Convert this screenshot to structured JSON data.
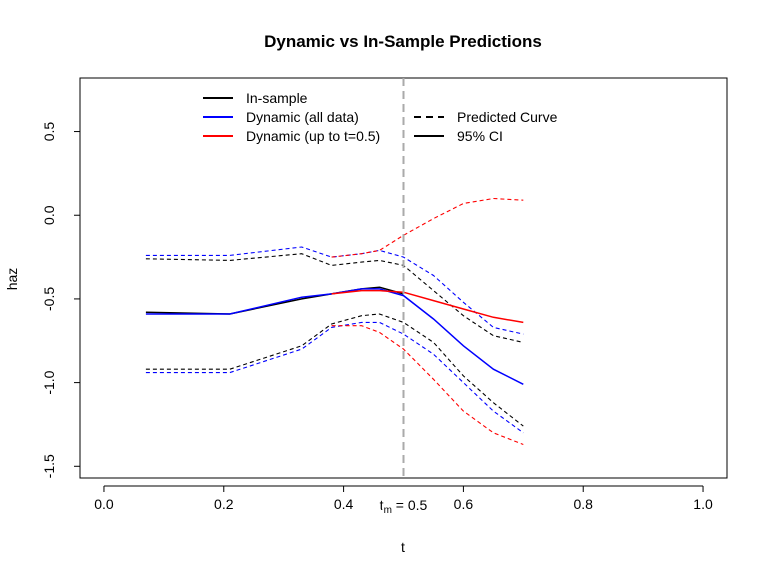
{
  "chart_data": {
    "type": "line",
    "title": "Dynamic vs In-Sample Predictions",
    "xlabel": "t",
    "ylabel": "haz",
    "xlim": [
      -0.04,
      1.04
    ],
    "ylim": [
      -1.57,
      0.82
    ],
    "xticks": [
      0.0,
      0.2,
      0.4,
      0.6,
      0.8,
      1.0
    ],
    "xtick_labels": [
      "0.0",
      "0.2",
      "0.4",
      "0.6",
      "0.8",
      "1.0"
    ],
    "yticks": [
      -1.5,
      -1.0,
      -0.5,
      0.0,
      0.5
    ],
    "ytick_labels": [
      "-1.5",
      "-1.0",
      "-0.5",
      "0.0",
      "0.5"
    ],
    "grid": false,
    "vline": {
      "x": 0.5,
      "label_main": "t",
      "label_sub": "m",
      "label_rest": " = 0.5",
      "color": "#aaaaaa"
    },
    "legend_left": {
      "placement": "top-left",
      "entries": [
        {
          "label": "In-sample",
          "color": "#000000"
        },
        {
          "label": "Dynamic (all data)",
          "color": "#0000ff"
        },
        {
          "label": "Dynamic (up to t=0.5)",
          "color": "#ff0000"
        }
      ]
    },
    "legend_right": {
      "placement": "top-center",
      "entries": [
        {
          "label": "Predicted Curve",
          "style": "dashed"
        },
        {
          "label": "95% CI",
          "style": "solid"
        }
      ]
    },
    "series": [
      {
        "name": "In-sample",
        "color": "#000000",
        "role": "estimate",
        "x": [
          0.07,
          0.21,
          0.33,
          0.38,
          0.43,
          0.46,
          0.5
        ],
        "y": [
          -0.58,
          -0.59,
          -0.5,
          -0.47,
          -0.44,
          -0.43,
          -0.47
        ]
      },
      {
        "name": "In-sample",
        "color": "#000000",
        "role": "upper",
        "x": [
          0.07,
          0.21,
          0.33,
          0.38,
          0.43,
          0.46,
          0.5,
          0.55,
          0.6,
          0.65,
          0.7
        ],
        "y": [
          -0.26,
          -0.27,
          -0.23,
          -0.3,
          -0.28,
          -0.27,
          -0.3,
          -0.45,
          -0.6,
          -0.72,
          -0.76
        ]
      },
      {
        "name": "In-sample",
        "color": "#000000",
        "role": "lower",
        "x": [
          0.07,
          0.21,
          0.33,
          0.38,
          0.43,
          0.46,
          0.5,
          0.55,
          0.6,
          0.65,
          0.7
        ],
        "y": [
          -0.92,
          -0.92,
          -0.78,
          -0.65,
          -0.6,
          -0.59,
          -0.64,
          -0.76,
          -0.96,
          -1.12,
          -1.26
        ]
      },
      {
        "name": "Dynamic (all data)",
        "color": "#0000ff",
        "role": "estimate",
        "x": [
          0.07,
          0.21,
          0.33,
          0.38,
          0.43,
          0.46,
          0.5,
          0.55,
          0.6,
          0.65,
          0.7
        ],
        "y": [
          -0.59,
          -0.59,
          -0.49,
          -0.47,
          -0.44,
          -0.44,
          -0.48,
          -0.62,
          -0.78,
          -0.92,
          -1.01
        ]
      },
      {
        "name": "Dynamic (all data)",
        "color": "#0000ff",
        "role": "upper",
        "x": [
          0.07,
          0.21,
          0.33,
          0.38,
          0.43,
          0.46,
          0.5,
          0.55,
          0.6,
          0.65,
          0.7
        ],
        "y": [
          -0.24,
          -0.24,
          -0.19,
          -0.25,
          -0.23,
          -0.21,
          -0.25,
          -0.36,
          -0.52,
          -0.67,
          -0.71
        ]
      },
      {
        "name": "Dynamic (all data)",
        "color": "#0000ff",
        "role": "lower",
        "x": [
          0.07,
          0.21,
          0.33,
          0.38,
          0.43,
          0.46,
          0.5,
          0.55,
          0.6,
          0.65,
          0.7
        ],
        "y": [
          -0.94,
          -0.94,
          -0.8,
          -0.67,
          -0.64,
          -0.64,
          -0.71,
          -0.83,
          -1.0,
          -1.17,
          -1.3
        ]
      },
      {
        "name": "Dynamic (up to t=0.5)",
        "color": "#ff0000",
        "role": "estimate",
        "x": [
          0.38,
          0.43,
          0.46,
          0.5,
          0.55,
          0.6,
          0.65,
          0.7
        ],
        "y": [
          -0.47,
          -0.45,
          -0.45,
          -0.46,
          -0.51,
          -0.56,
          -0.61,
          -0.64
        ]
      },
      {
        "name": "Dynamic (up to t=0.5)",
        "color": "#ff0000",
        "role": "upper",
        "x": [
          0.38,
          0.43,
          0.46,
          0.5,
          0.55,
          0.6,
          0.65,
          0.7
        ],
        "y": [
          -0.25,
          -0.23,
          -0.21,
          -0.12,
          -0.02,
          0.07,
          0.1,
          0.09
        ]
      },
      {
        "name": "Dynamic (up to t=0.5)",
        "color": "#ff0000",
        "role": "lower",
        "x": [
          0.38,
          0.43,
          0.46,
          0.5,
          0.55,
          0.6,
          0.65,
          0.7
        ],
        "y": [
          -0.66,
          -0.66,
          -0.7,
          -0.8,
          -0.98,
          -1.17,
          -1.3,
          -1.37
        ]
      }
    ]
  }
}
